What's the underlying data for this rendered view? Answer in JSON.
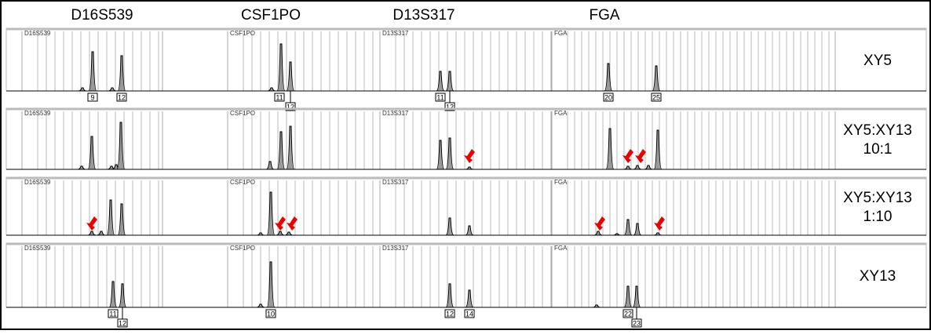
{
  "header": {
    "loci": [
      "D16S539",
      "CSF1PO",
      "D13S317",
      "FGA"
    ]
  },
  "panels": [
    {
      "sample": [
        "XY5"
      ],
      "locus_tags": [
        "D16S539",
        "CSF1PO",
        "D13S317",
        "FGA"
      ],
      "alleles": [
        [
          "9",
          "12"
        ],
        [
          "11",
          "12"
        ],
        [
          "11",
          "12"
        ],
        [
          "20",
          "25"
        ]
      ]
    },
    {
      "sample": [
        "XY5:XY13",
        "10:1"
      ],
      "locus_tags": [
        "D16S539",
        "CSF1PO",
        "D13S317",
        "FGA"
      ],
      "alleles": [
        [],
        [],
        [],
        []
      ]
    },
    {
      "sample": [
        "XY5:XY13",
        "1:10"
      ],
      "locus_tags": [
        "D16S539",
        "CSF1PO",
        "D13S317",
        "FGA"
      ],
      "alleles": [
        [],
        [],
        [],
        []
      ]
    },
    {
      "sample": [
        "XY13"
      ],
      "locus_tags": [
        "D16S539",
        "CSF1PO",
        "D13S317",
        "FGA"
      ],
      "alleles": [
        [
          "11",
          "12"
        ],
        [
          "10"
        ],
        [
          "12",
          "14"
        ],
        [
          "22",
          "23"
        ]
      ]
    }
  ]
}
